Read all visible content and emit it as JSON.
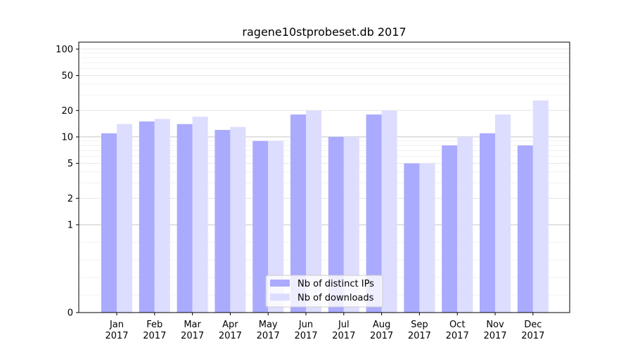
{
  "chart_data": {
    "type": "bar",
    "title": "ragene10stprobeset.db 2017",
    "xlabel": "",
    "ylabel": "",
    "scale": "symlog",
    "ylim": [
      0,
      120
    ],
    "yticks": [
      0,
      1,
      2,
      5,
      10,
      20,
      50,
      100
    ],
    "ytick_labels": [
      "0",
      "1",
      "2",
      "5",
      "10",
      "20",
      "50",
      "100"
    ],
    "categories": [
      [
        "Jan",
        "2017"
      ],
      [
        "Feb",
        "2017"
      ],
      [
        "Mar",
        "2017"
      ],
      [
        "Apr",
        "2017"
      ],
      [
        "May",
        "2017"
      ],
      [
        "Jun",
        "2017"
      ],
      [
        "Jul",
        "2017"
      ],
      [
        "Aug",
        "2017"
      ],
      [
        "Sep",
        "2017"
      ],
      [
        "Oct",
        "2017"
      ],
      [
        "Nov",
        "2017"
      ],
      [
        "Dec",
        "2017"
      ]
    ],
    "series": [
      {
        "name": "Nb of distinct IPs",
        "color": "#aaaaff",
        "values": [
          11,
          15,
          14,
          12,
          9,
          18,
          10,
          18,
          5,
          8,
          11,
          8
        ]
      },
      {
        "name": "Nb of downloads",
        "color": "#ddddff",
        "values": [
          14,
          16,
          17,
          13,
          9,
          20,
          10,
          20,
          5,
          10,
          18,
          26
        ]
      }
    ],
    "grid": true,
    "legend_position": "bottom-center"
  }
}
